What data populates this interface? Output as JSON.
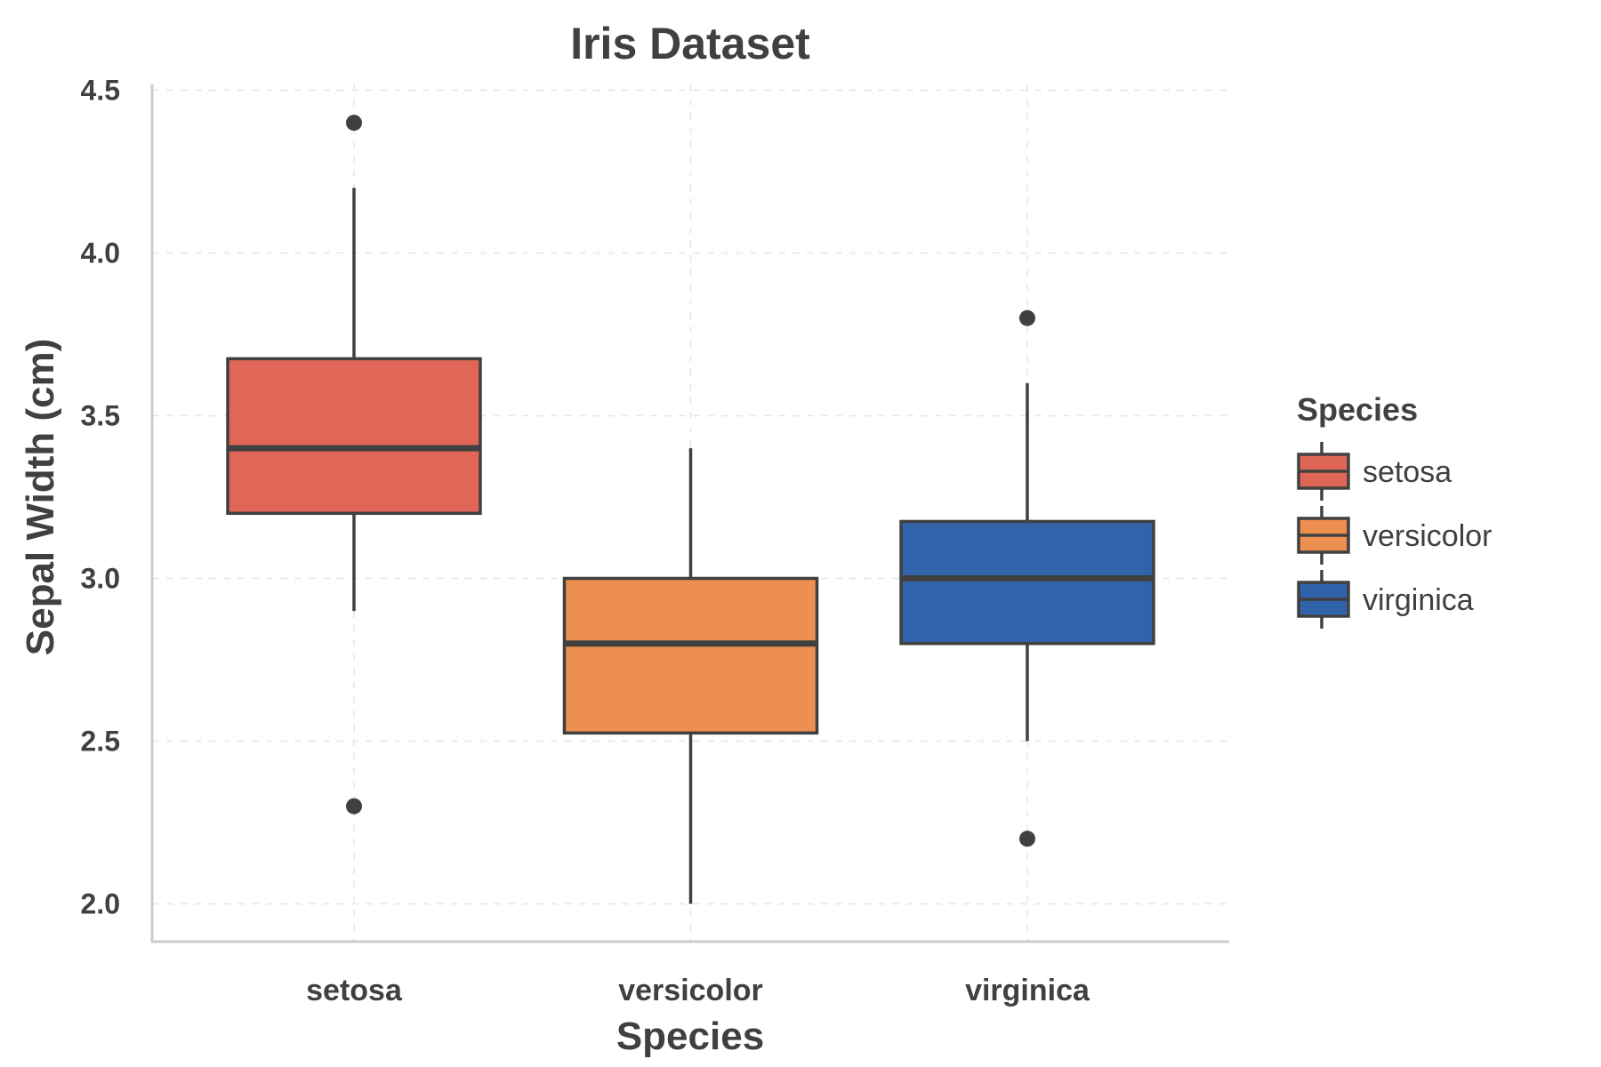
{
  "chart_data": {
    "type": "box",
    "title": "Iris Dataset",
    "xlabel": "Species",
    "ylabel": "Sepal Width (cm)",
    "ylim": [
      1.89,
      4.52
    ],
    "yticks": [
      "2.0",
      "2.5",
      "3.0",
      "3.5",
      "4.0",
      "4.5"
    ],
    "grid": true,
    "legend": {
      "title": "Species",
      "placement": "right"
    },
    "categories": [
      "setosa",
      "versicolor",
      "virginica"
    ],
    "series": [
      {
        "name": "setosa",
        "color": "#E06757",
        "whisker_low": 2.9,
        "q1": 3.2,
        "median": 3.4,
        "q3": 3.675,
        "whisker_high": 4.2,
        "outliers": [
          4.4,
          2.3
        ]
      },
      {
        "name": "versicolor",
        "color": "#EC8F50",
        "whisker_low": 2.0,
        "q1": 2.525,
        "median": 2.8,
        "q3": 3.0,
        "whisker_high": 3.4,
        "outliers": []
      },
      {
        "name": "virginica",
        "color": "#3163AB",
        "whisker_low": 2.5,
        "q1": 2.8,
        "median": 3.0,
        "q3": 3.175,
        "whisker_high": 3.6,
        "outliers": [
          3.8,
          2.2
        ]
      }
    ]
  }
}
